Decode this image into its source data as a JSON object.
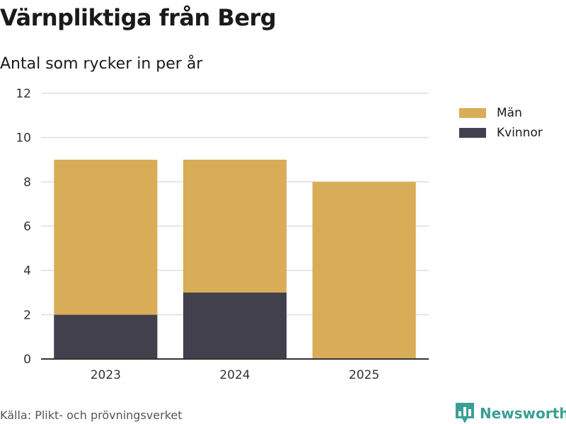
{
  "title": "Värnpliktiga från Berg",
  "subtitle": "Antal som rycker in per år",
  "source": "Källa: Plikt- och prövningsverket",
  "brand": "Newsworthy",
  "colors": {
    "man": "#d9ad58",
    "kvinnor": "#42404c",
    "grid": "#dddddd",
    "axis": "#333333",
    "brand": "#3a9f93"
  },
  "legend": [
    {
      "label": "Män",
      "color_key": "man"
    },
    {
      "label": "Kvinnor",
      "color_key": "kvinnor"
    }
  ],
  "chart_data": {
    "type": "bar",
    "stacked": true,
    "title": "Värnpliktiga från Berg",
    "subtitle": "Antal som rycker in per år",
    "categories": [
      "2023",
      "2024",
      "2025"
    ],
    "series": [
      {
        "name": "Kvinnor",
        "values": [
          2,
          3,
          0
        ]
      },
      {
        "name": "Män",
        "values": [
          7,
          6,
          8
        ]
      }
    ],
    "ylim": [
      0,
      12
    ],
    "yticks": [
      "0",
      "2",
      "4",
      "6",
      "8",
      "10",
      "12"
    ],
    "xlabel": "",
    "ylabel": "",
    "grid": true,
    "legend_position": "right"
  }
}
